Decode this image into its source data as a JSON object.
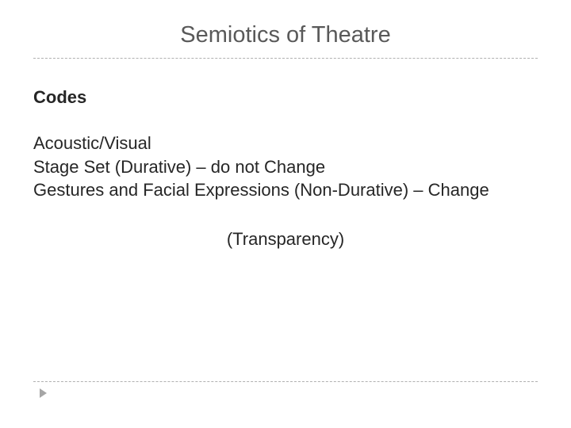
{
  "slide": {
    "title": "Semiotics of Theatre",
    "subtitle": "Codes",
    "body_lines": [
      "Acoustic/Visual",
      "Stage Set (Durative) – do not Change",
      "Gestures and Facial Expressions (Non-Durative) – Change"
    ],
    "note": "(Transparency)"
  },
  "style": {
    "background_color": "#ffffff",
    "title_color": "#595959",
    "text_color": "#262626",
    "dash_color": "#b0b0b0",
    "arrow_color": "#a6a6a6",
    "title_fontsize": 29,
    "subtitle_fontsize": 22,
    "body_fontsize": 22
  }
}
